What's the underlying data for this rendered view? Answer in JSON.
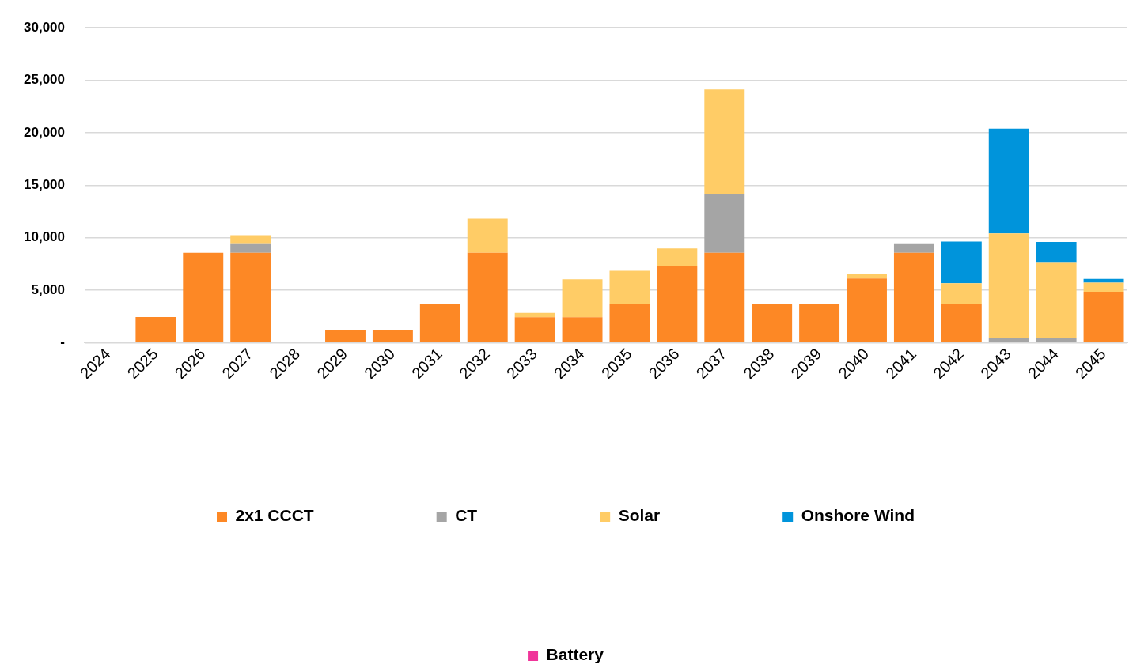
{
  "chart_data": {
    "type": "bar",
    "stacked": true,
    "categories": [
      "2024",
      "2025",
      "2026",
      "2027",
      "2028",
      "2029",
      "2030",
      "2031",
      "2032",
      "2033",
      "2034",
      "2035",
      "2036",
      "2037",
      "2038",
      "2039",
      "2040",
      "2041",
      "2042",
      "2043",
      "2044",
      "2045"
    ],
    "series": [
      {
        "name": "2x1 CCCT",
        "color": "#fd8825",
        "values": [
          0,
          2450,
          8570,
          8570,
          0,
          1220,
          1220,
          3700,
          8570,
          2440,
          2440,
          3700,
          7350,
          8570,
          3700,
          3700,
          6130,
          8570,
          3700,
          0,
          0,
          4870
        ]
      },
      {
        "name": "CT",
        "color": "#a5a5a5",
        "values": [
          0,
          0,
          0,
          900,
          0,
          0,
          0,
          0,
          0,
          0,
          0,
          0,
          0,
          5590,
          0,
          0,
          0,
          900,
          0,
          410,
          410,
          0
        ]
      },
      {
        "name": "Solar",
        "color": "#ffcc66",
        "values": [
          0,
          0,
          0,
          770,
          0,
          0,
          0,
          0,
          3250,
          400,
          3600,
          3160,
          1630,
          9970,
          0,
          0,
          410,
          0,
          1980,
          10010,
          7210,
          860
        ]
      },
      {
        "name": "Onshore Wind",
        "color": "#0094db",
        "values": [
          0,
          0,
          0,
          0,
          0,
          0,
          0,
          0,
          0,
          0,
          0,
          0,
          0,
          0,
          0,
          0,
          0,
          0,
          3970,
          9970,
          1990,
          360
        ]
      },
      {
        "name": "Battery",
        "color": "#f0359a",
        "values": [
          0,
          0,
          0,
          0,
          0,
          0,
          0,
          0,
          0,
          0,
          0,
          0,
          0,
          0,
          0,
          0,
          0,
          0,
          0,
          0,
          0,
          0
        ]
      }
    ],
    "ylim": [
      0,
      30000
    ],
    "yticks": [
      {
        "value": 0,
        "label": "-"
      },
      {
        "value": 5000,
        "label": "5,000"
      },
      {
        "value": 10000,
        "label": "10,000"
      },
      {
        "value": 15000,
        "label": "15,000"
      },
      {
        "value": 20000,
        "label": "20,000"
      },
      {
        "value": 25000,
        "label": "25,000"
      },
      {
        "value": 30000,
        "label": "30,000"
      }
    ],
    "grid": "y",
    "legend": "bottom"
  }
}
